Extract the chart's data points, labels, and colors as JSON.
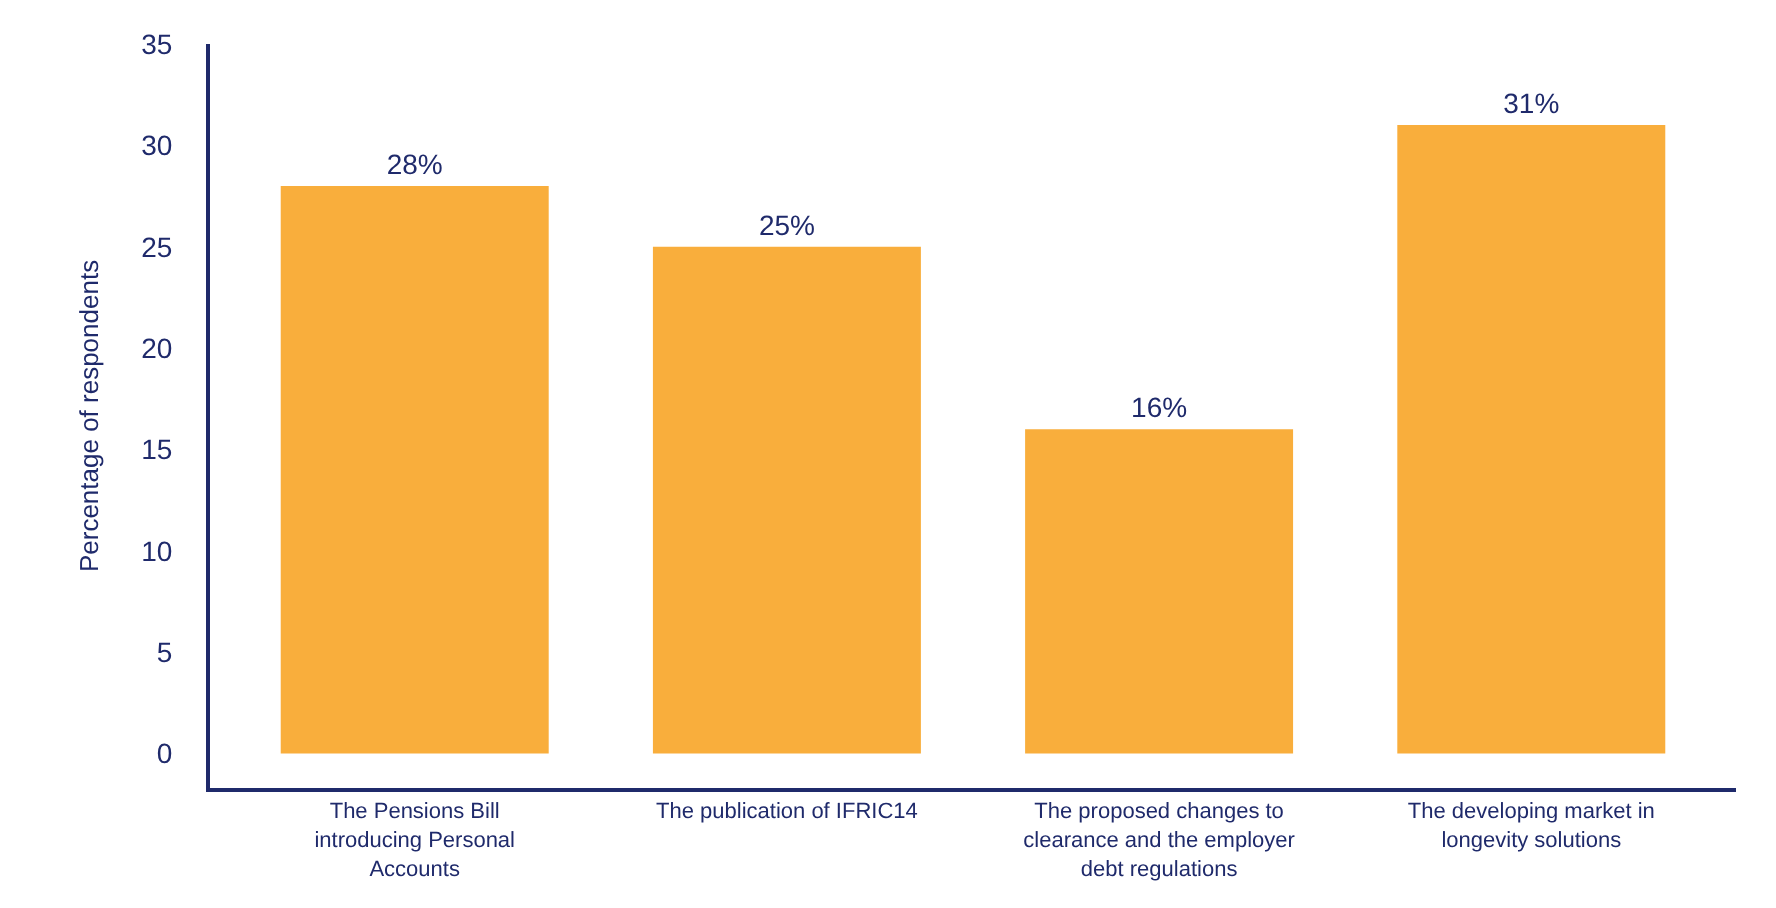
{
  "chart_data": {
    "type": "bar",
    "ylabel": "Percentage of respondents",
    "categories": [
      "The Pensions Bill introducing Personal Accounts",
      "The publication of IFRIC14",
      "The proposed changes to clearance and the employer debt regulations",
      "The developing market in longevity solutions"
    ],
    "values": [
      28,
      25,
      16,
      31
    ],
    "value_labels": [
      "28%",
      "25%",
      "16%",
      "31%"
    ],
    "color": "#f9ae3c",
    "ylim": [
      -1.7,
      35
    ],
    "yticks": [
      0,
      5,
      10,
      15,
      20,
      25,
      30,
      35
    ],
    "grid": false
  }
}
